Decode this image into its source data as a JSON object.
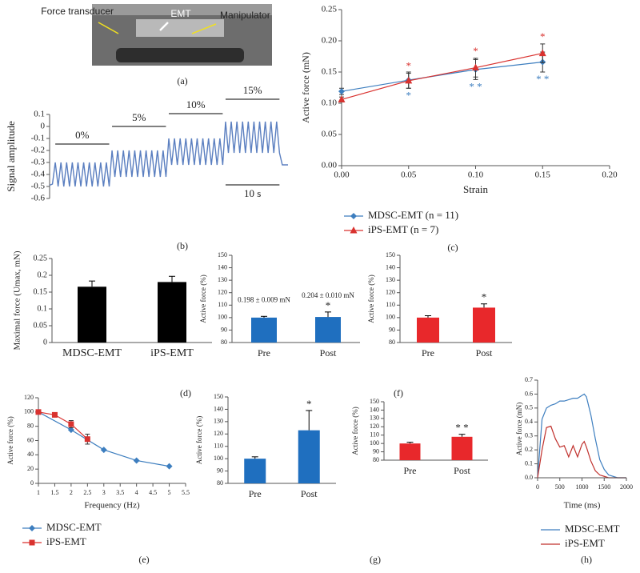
{
  "photo": {
    "labels": [
      "Force transducer",
      "EMT",
      "Manipulator"
    ]
  },
  "captions": [
    "(a)",
    "(b)",
    "(c)",
    "(d)",
    "(e)",
    "(f)",
    "(g)",
    "(h)"
  ],
  "chart_data": [
    {
      "type": "line",
      "ylabel": "Signal amplitude",
      "ylim": [
        -0.6,
        0.1
      ],
      "yticks": [
        0.1,
        0,
        -0.1,
        -0.2,
        -0.3,
        -0.4,
        -0.5,
        -0.6
      ],
      "series": [
        {
          "color": "#5b7fc0",
          "values": [
            -0.49,
            -0.48,
            -0.3,
            -0.5,
            -0.3,
            -0.5,
            -0.3,
            -0.5,
            -0.3,
            -0.5,
            -0.3,
            -0.5,
            -0.3,
            -0.5,
            -0.3,
            -0.5,
            -0.3,
            -0.5,
            -0.3,
            -0.5,
            -0.3,
            -0.5,
            -0.2,
            -0.42,
            -0.2,
            -0.42,
            -0.2,
            -0.42,
            -0.2,
            -0.42,
            -0.2,
            -0.42,
            -0.2,
            -0.42,
            -0.2,
            -0.42,
            -0.2,
            -0.42,
            -0.2,
            -0.42,
            -0.2,
            -0.42,
            -0.1,
            -0.32,
            -0.1,
            -0.32,
            -0.1,
            -0.32,
            -0.1,
            -0.32,
            -0.1,
            -0.32,
            -0.1,
            -0.32,
            -0.1,
            -0.32,
            -0.1,
            -0.32,
            -0.1,
            -0.32,
            -0.1,
            -0.32,
            0.04,
            -0.22,
            0.04,
            -0.22,
            0.04,
            -0.22,
            0.04,
            -0.22,
            0.04,
            -0.22,
            0.04,
            -0.22,
            0.04,
            -0.22,
            0.04,
            -0.22,
            0.04,
            -0.22,
            0.04,
            -0.22,
            -0.32,
            -0.32,
            -0.32
          ]
        }
      ],
      "annotations": [
        "0%",
        "5%",
        "10%",
        "15%"
      ],
      "scale_bar": "10 s"
    },
    {
      "type": "line",
      "xlabel": "Strain",
      "ylabel": "Active force (mN)",
      "x": [
        0,
        0.05,
        0.1,
        0.15
      ],
      "xlim": [
        0,
        0.2
      ],
      "xticks": [
        {
          "value": 0,
          "label": "0.00"
        },
        0.05,
        {
          "value": 0.1,
          "label": "0.10"
        },
        0.15,
        {
          "value": 0.2,
          "label": "0.20"
        }
      ],
      "ylim": [
        0,
        0.25
      ],
      "yticks": [
        {
          "value": 0,
          "label": "0.00"
        },
        0.05,
        {
          "value": 0.1,
          "label": "0.10"
        },
        0.15,
        {
          "value": 0.2,
          "label": "0.20"
        },
        0.25
      ],
      "legend": true,
      "series": [
        {
          "name": "MDSC-EMT (n = 11)",
          "color": "#3d7ebf",
          "marker": "diamond",
          "values": [
            0.119,
            0.137,
            0.154,
            0.166
          ],
          "errors": [
            0.005,
            0.013,
            0.016,
            0.016
          ],
          "stars": [
            null,
            "*",
            "* *",
            "* *"
          ]
        },
        {
          "name": "iPS-EMT (n = 7)",
          "color": "#d9322f",
          "marker": "triangle",
          "values": [
            0.106,
            0.136,
            0.157,
            0.18
          ],
          "errors": [
            0.004,
            0.012,
            0.015,
            0.015
          ],
          "stars": [
            null,
            "*",
            "*",
            "*"
          ]
        }
      ]
    },
    {
      "type": "bar",
      "ylabel": "Maximal force (Umax, mN)",
      "categories": [
        "MDSC-EMT",
        "iPS-EMT"
      ],
      "values": [
        0.166,
        0.18
      ],
      "errors": [
        0.017,
        0.017
      ],
      "color": "#000000",
      "ylim": [
        0,
        0.25
      ],
      "yticks": [
        0,
        0.05,
        0.1,
        0.15,
        0.2,
        0.25
      ]
    },
    {
      "type": "bar",
      "ylabel": "Active force (%)",
      "categories": [
        "Pre",
        "Post"
      ],
      "values": [
        100,
        100.5
      ],
      "errors": [
        1,
        4
      ],
      "color": "#1f6fbf",
      "ylim": [
        80,
        150
      ],
      "yticks": [
        80,
        90,
        100,
        110,
        120,
        130,
        140,
        150
      ],
      "annotations": [
        null,
        "*"
      ],
      "notes": [
        "0.198 ± 0.009 mN",
        "0.204 ± 0.010 mN"
      ]
    },
    {
      "type": "bar",
      "ylabel": "Active force (%)",
      "categories": [
        "Pre",
        "Post"
      ],
      "values": [
        100,
        108
      ],
      "errors": [
        1.5,
        3
      ],
      "color": "#e8282b",
      "ylim": [
        80,
        150
      ],
      "yticks": [
        80,
        90,
        100,
        110,
        120,
        130,
        140,
        150
      ],
      "annotations": [
        null,
        "*"
      ]
    },
    {
      "type": "line",
      "xlabel": "Frequency (Hz)",
      "ylabel": "Active force (%)",
      "xlim": [
        1,
        5.5
      ],
      "xticks": [
        1,
        1.5,
        2,
        2.5,
        3,
        3.5,
        4,
        4.5,
        5,
        5.5
      ],
      "ylim": [
        0,
        120
      ],
      "yticks": [
        0,
        20,
        40,
        60,
        80,
        100,
        120
      ],
      "legend": true,
      "series": [
        {
          "name": "MDSC-EMT",
          "color": "#3d7ebf",
          "marker": "diamond",
          "x": [
            1,
            2,
            3,
            4,
            5
          ],
          "values": [
            100,
            75,
            47,
            32,
            24
          ]
        },
        {
          "name": "iPS-EMT",
          "color": "#d9322f",
          "marker": "square",
          "x": [
            1,
            1.5,
            2,
            2.5
          ],
          "values": [
            100,
            96,
            83,
            62
          ],
          "errors": [
            null,
            null,
            5,
            7
          ]
        }
      ]
    },
    {
      "type": "bar",
      "ylabel": "Active force (%)",
      "categories": [
        "Pre",
        "Post"
      ],
      "values": [
        100,
        123
      ],
      "errors": [
        1.5,
        16
      ],
      "color": "#1f6fbf",
      "ylim": [
        80,
        150
      ],
      "yticks": [
        80,
        90,
        100,
        110,
        120,
        130,
        140,
        150
      ],
      "annotations": [
        null,
        "*"
      ]
    },
    {
      "type": "bar",
      "ylabel": "Active force (%)",
      "categories": [
        "Pre",
        "Post"
      ],
      "values": [
        100,
        108
      ],
      "errors": [
        1.5,
        3
      ],
      "color": "#e8282b",
      "ylim": [
        80,
        150
      ],
      "yticks": [
        80,
        90,
        100,
        110,
        120,
        130,
        140,
        150
      ],
      "annotations": [
        null,
        "* *"
      ]
    },
    {
      "type": "line",
      "xlabel": "Time (ms)",
      "ylabel": "Active force (mN)",
      "x": [
        0,
        100,
        200,
        300,
        400,
        500,
        600,
        700,
        800,
        900,
        1000,
        1050,
        1100,
        1200,
        1300,
        1400,
        1500,
        1600,
        1800,
        2000
      ],
      "xlim": [
        0,
        2000
      ],
      "xticks": [
        0,
        500,
        1000,
        1500,
        2000
      ],
      "ylim": [
        0,
        0.7
      ],
      "yticks": [
        {
          "value": 0,
          "label": "0.0"
        },
        0.1,
        0.2,
        0.3,
        0.4,
        0.5,
        0.6,
        0.7
      ],
      "legend": true,
      "series": [
        {
          "name": "MDSC-EMT",
          "color": "#3d7ebf",
          "values": [
            0,
            0.42,
            0.5,
            0.52,
            0.53,
            0.55,
            0.55,
            0.56,
            0.57,
            0.57,
            0.59,
            0.6,
            0.58,
            0.45,
            0.28,
            0.13,
            0.06,
            0.02,
            0,
            0
          ]
        },
        {
          "name": "iPS-EMT",
          "color": "#c0302c",
          "values": [
            0,
            0.2,
            0.36,
            0.37,
            0.28,
            0.22,
            0.23,
            0.15,
            0.23,
            0.15,
            0.24,
            0.26,
            0.22,
            0.12,
            0.05,
            0.02,
            0.01,
            0,
            0,
            0
          ]
        }
      ]
    }
  ]
}
